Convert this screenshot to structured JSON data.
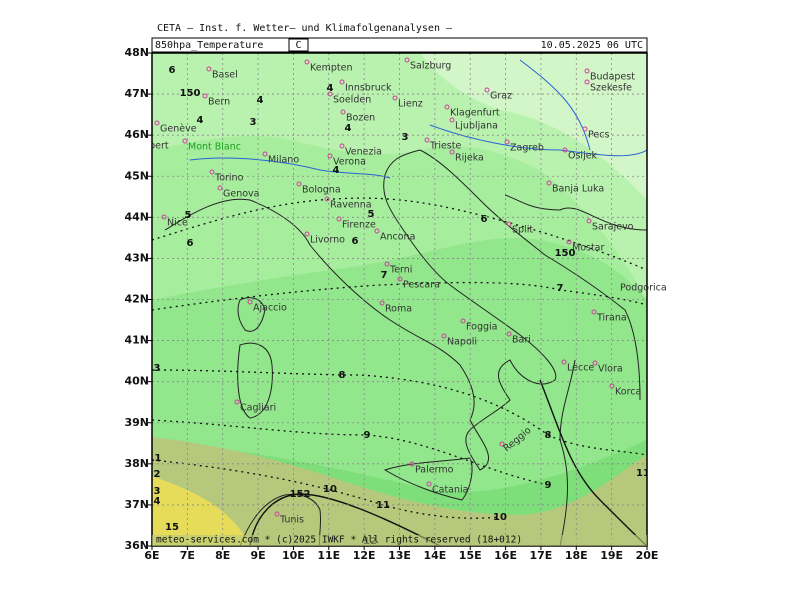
{
  "header": {
    "institute": "CETA — Inst. f. Wetter— und Klimafolgenanalysen —",
    "field": "850hpa_Temperature",
    "unit": "C",
    "valid": "10.05.2025 06 UTC"
  },
  "axes": {
    "lon": [
      {
        "value": 6,
        "label": "6E"
      },
      {
        "value": 7,
        "label": "7E"
      },
      {
        "value": 8,
        "label": "8E"
      },
      {
        "value": 9,
        "label": "9E"
      },
      {
        "value": 10,
        "label": "10E"
      },
      {
        "value": 11,
        "label": "11E"
      },
      {
        "value": 12,
        "label": "12E"
      },
      {
        "value": 13,
        "label": "13E"
      },
      {
        "value": 14,
        "label": "14E"
      },
      {
        "value": 15,
        "label": "15E"
      },
      {
        "value": 16,
        "label": "16E"
      },
      {
        "value": 17,
        "label": "17E"
      },
      {
        "value": 18,
        "label": "18E"
      },
      {
        "value": 19,
        "label": "19E"
      },
      {
        "value": 20,
        "label": "20E"
      }
    ],
    "lat": [
      {
        "value": 48,
        "label": "48N"
      },
      {
        "value": 47,
        "label": "47N"
      },
      {
        "value": 46,
        "label": "46N"
      },
      {
        "value": 45,
        "label": "45N"
      },
      {
        "value": 44,
        "label": "44N"
      },
      {
        "value": 43,
        "label": "43N"
      },
      {
        "value": 42,
        "label": "42N"
      },
      {
        "value": 41,
        "label": "41N"
      },
      {
        "value": 40,
        "label": "40N"
      },
      {
        "value": 39,
        "label": "39N"
      },
      {
        "value": 38,
        "label": "38N"
      },
      {
        "value": 37,
        "label": "37N"
      },
      {
        "value": 36,
        "label": "36N"
      }
    ]
  },
  "cities": [
    "Basel",
    "Kempten",
    "Salzburg",
    "Bern",
    "Innsbruck",
    "Soelden",
    "Lienz",
    "Budapest",
    "Szekesfe",
    "Graz",
    "Klagenfurt",
    "Ljubljana",
    "Zagreb",
    "Genève",
    "Albert",
    "Mont Blanc",
    "Bozen",
    "Venezia",
    "Trieste",
    "Rijeka",
    "Milano",
    "Verona",
    "Osijek",
    "Pecs",
    "Torino",
    "Bologna",
    "Banja Luka",
    "Genova",
    "Ravenna",
    "Nice",
    "Firenze",
    "Sarajevo",
    "Ancona",
    "Livorno",
    "Split",
    "Mostar",
    "Terni",
    "Pescara",
    "Ajaccio",
    "Roma",
    "Foggia",
    "Tirana",
    "Bari",
    "Napoli",
    "Lecce",
    "Vlora",
    "Korca",
    "Cagliari",
    "Palermo",
    "Reggio",
    "Catania",
    "Tunis",
    "Podgorica"
  ],
  "contour_labels": [
    "6",
    "150",
    "4",
    "4",
    "3",
    "4",
    "4",
    "3",
    "5",
    "6",
    "4",
    "5",
    "6",
    "7",
    "6",
    "150",
    "7",
    "3",
    "8",
    "9",
    "8",
    "1",
    "2",
    "3",
    "4",
    "152",
    "10",
    "11",
    "15",
    "12",
    "10",
    "9",
    "11"
  ],
  "footer": "meteo-services.com * (c)2025 IWKF * All rights reserved (18+012)"
}
